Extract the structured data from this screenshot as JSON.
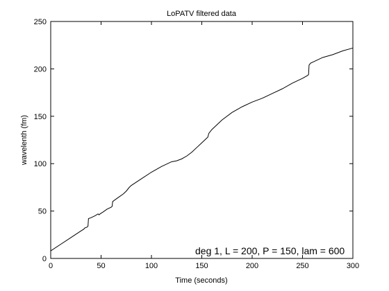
{
  "chart_data": {
    "type": "line",
    "title": "LoPATV filtered data",
    "xlabel": "Time (seconds)",
    "ylabel": "wavelenth (fm)",
    "xlim": [
      0,
      300
    ],
    "ylim": [
      0,
      250
    ],
    "xticks": [
      0,
      50,
      100,
      150,
      200,
      250,
      300
    ],
    "yticks": [
      0,
      50,
      100,
      150,
      200,
      250
    ],
    "grid": false,
    "annotation": "deg 1, L = 200, P = 150, lam = 600",
    "colors": {
      "line": "#000000",
      "axes": "#000000",
      "background": "#ffffff"
    },
    "series": [
      {
        "x": [
          0,
          10,
          20,
          30,
          33,
          33.5,
          36,
          37,
          37.5,
          40,
          44,
          47,
          48,
          49,
          52,
          56,
          60,
          61,
          61.5,
          64,
          68,
          72,
          75,
          78,
          80,
          90,
          100,
          110,
          120,
          125,
          130,
          135,
          140,
          145,
          150,
          155,
          156,
          157,
          160,
          165,
          170,
          180,
          190,
          200,
          210,
          220,
          230,
          240,
          250,
          255,
          256,
          256.5,
          258,
          262,
          270,
          280,
          290,
          300
        ],
        "y": [
          8,
          15,
          22,
          29,
          31,
          32,
          33,
          34,
          42,
          43,
          45,
          47,
          46,
          47,
          49,
          52,
          54,
          55,
          60,
          62,
          65,
          68,
          71,
          75,
          77,
          84,
          91,
          97,
          102,
          103,
          105,
          108,
          112,
          117,
          122,
          127,
          128,
          132,
          136,
          141,
          146,
          154,
          160,
          165,
          169,
          174,
          179,
          185,
          190,
          193,
          194,
          204,
          206,
          208,
          212,
          215,
          219,
          222
        ]
      }
    ]
  }
}
